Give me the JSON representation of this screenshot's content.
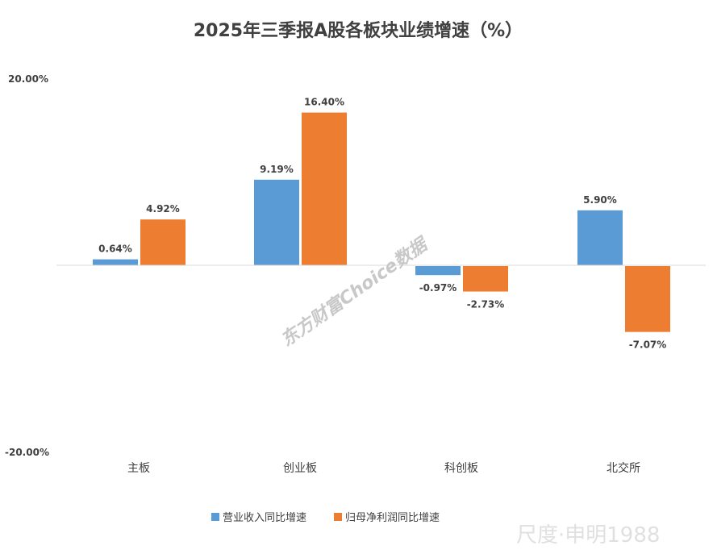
{
  "chart_data": {
    "type": "bar",
    "title": "2025年三季报A股各板块业绩增速（%）",
    "categories": [
      "主板",
      "创业板",
      "科创板",
      "北交所"
    ],
    "series": [
      {
        "name": "营业收入同比增速",
        "values": [
          0.64,
          9.19,
          -0.97,
          5.9
        ],
        "labels": [
          "0.64%",
          "9.19%",
          "-0.97%",
          "5.90%"
        ],
        "color": "#5B9BD5"
      },
      {
        "name": "归母净利润同比增速",
        "values": [
          4.92,
          16.4,
          -2.73,
          -7.07
        ],
        "labels": [
          "4.92%",
          "16.40%",
          "-2.73%",
          "-7.07%"
        ],
        "color": "#ED7D31"
      }
    ],
    "ylim": [
      -20,
      20
    ],
    "yticks": [
      "20.00%",
      "-20.00%"
    ],
    "grid": false,
    "legend_position": "bottom"
  },
  "watermarks": [
    "东方财富Choice数据",
    "尺度·申明1988"
  ]
}
